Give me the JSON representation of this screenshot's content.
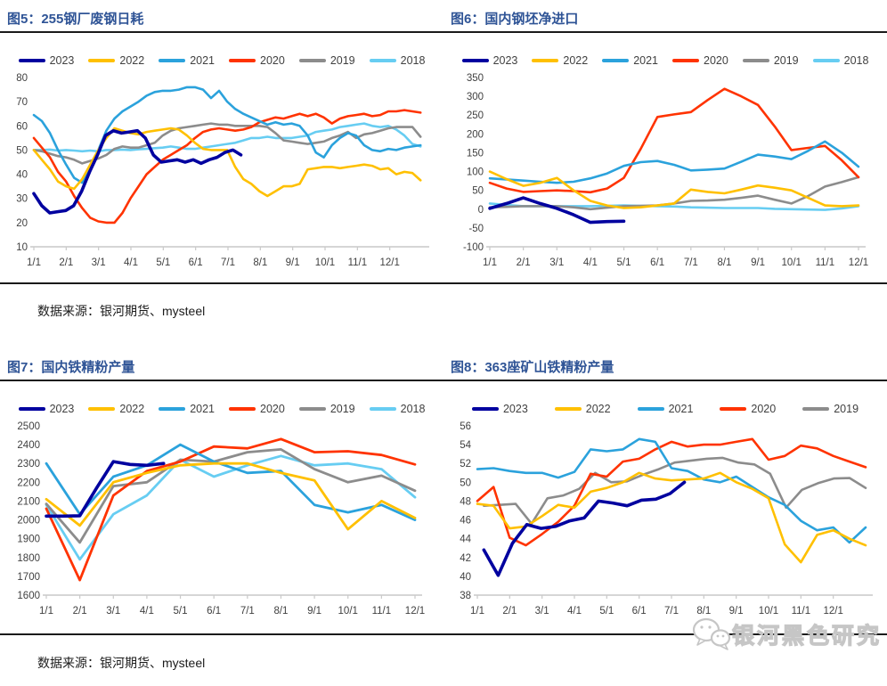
{
  "source_note": "数据来源：银河期货、mysteel",
  "watermark": {
    "label": "银河黑色研究",
    "logo": "wechat-bubbles-icon",
    "color": "#c6c6c6"
  },
  "accent_colors": {
    "title": "#2F5496",
    "tick_label": "#404040",
    "axis_line": "#c9c9c9",
    "rule_line": "#1a1a1a"
  },
  "chart_data": [
    {
      "type": "line",
      "title": "图5：255钢厂废钢日耗",
      "ylim": [
        10,
        80
      ],
      "yticks": [
        10,
        20,
        30,
        40,
        50,
        60,
        70,
        80
      ],
      "xticks": [
        "1/1",
        "2/1",
        "3/1",
        "4/1",
        "5/1",
        "6/1",
        "7/1",
        "8/1",
        "9/1",
        "10/1",
        "11/1",
        "12/1"
      ],
      "xmax": 13,
      "grid": false,
      "legend_position": "top",
      "series": [
        {
          "name": "2023",
          "color": "#00009F",
          "width": 3.6,
          "x_start": 1,
          "x_end": 7.4,
          "values": [
            32,
            27,
            24,
            24.5,
            25,
            27,
            33,
            41,
            48,
            56,
            58,
            57,
            57.5,
            58,
            55,
            48,
            45,
            45.5,
            46,
            45,
            46,
            44.5,
            46,
            47,
            49,
            50,
            48
          ]
        },
        {
          "name": "2022",
          "color": "#FFC000",
          "width": 2.6,
          "x_start": 1,
          "x_end": 12.95,
          "values": [
            50,
            46,
            42,
            37,
            35,
            34,
            38,
            44,
            50,
            55,
            59,
            58,
            57,
            56.5,
            57.5,
            58,
            58.5,
            59,
            58.5,
            56,
            53,
            50.5,
            50,
            50,
            50,
            43,
            38,
            36,
            33,
            31,
            33,
            35,
            35,
            36,
            42,
            42.5,
            43,
            43,
            42.5,
            43,
            43.5,
            44,
            43.5,
            42,
            42.5,
            40,
            41,
            40.5,
            37.5
          ]
        },
        {
          "name": "2021",
          "color": "#2BA2DC",
          "width": 2.6,
          "x_start": 1,
          "x_end": 12.95,
          "values": [
            64.5,
            62,
            57,
            50,
            44,
            38.5,
            36.5,
            42,
            50,
            58,
            63,
            66,
            68,
            70,
            72.5,
            74,
            74.5,
            74.5,
            75,
            76,
            76,
            75,
            71.5,
            74.5,
            70,
            67,
            65,
            63.5,
            62,
            60.5,
            61.5,
            60.5,
            61,
            60,
            56,
            49,
            47,
            52,
            55,
            57,
            56,
            52,
            50,
            49.5,
            50.5,
            50,
            51,
            51.5,
            52
          ]
        },
        {
          "name": "2020",
          "color": "#FF3300",
          "width": 2.6,
          "x_start": 1,
          "x_end": 12.95,
          "values": [
            55,
            51,
            47,
            41,
            37,
            31,
            26,
            22,
            20.5,
            20,
            20,
            24,
            30,
            35,
            40,
            43,
            46,
            48,
            50,
            52,
            55,
            57.5,
            58.5,
            59,
            58.5,
            58,
            58.5,
            59.5,
            61.5,
            62.5,
            63.5,
            63,
            64,
            65,
            64,
            65,
            63.5,
            61,
            63,
            64,
            64.5,
            65,
            64,
            64.5,
            66,
            66,
            66.5,
            66,
            65.5
          ]
        },
        {
          "name": "2019",
          "color": "#8C8C8C",
          "width": 2.6,
          "x_start": 1,
          "x_end": 12.95,
          "values": [
            50,
            49.5,
            48.5,
            47.5,
            47,
            46,
            44.5,
            45.5,
            46.5,
            48,
            50.5,
            51.5,
            51,
            51,
            52,
            53,
            56,
            58,
            59,
            59.5,
            60,
            60.5,
            61,
            60.5,
            60.5,
            60,
            60,
            60,
            60,
            59.5,
            57,
            54,
            53.5,
            53,
            52.5,
            53,
            53.5,
            55,
            56,
            57.5,
            55,
            56.5,
            57,
            58,
            59,
            59.5,
            59.5,
            59.5,
            55.5
          ]
        },
        {
          "name": "2018",
          "color": "#67CDF2",
          "width": 2.6,
          "x_start": 1,
          "x_end": 12.95,
          "values": [
            50,
            50,
            50.2,
            49.8,
            50,
            49.8,
            49.5,
            49.8,
            49.5,
            50,
            50,
            50.2,
            50,
            50.3,
            50.5,
            50.8,
            51,
            51.5,
            51,
            50.5,
            50.5,
            51,
            51.5,
            52,
            52.5,
            53,
            54,
            55,
            55,
            55.5,
            55,
            55,
            55,
            55.5,
            56,
            57.5,
            58,
            58.5,
            59.5,
            60,
            60.5,
            61,
            60,
            59.5,
            60,
            58.5,
            56,
            52.5,
            51.5
          ]
        }
      ]
    },
    {
      "type": "line",
      "title": "图6：国内钢坯净进口",
      "ylim": [
        -100,
        350
      ],
      "yticks": [
        -100,
        -50,
        0,
        50,
        100,
        150,
        200,
        250,
        300,
        350
      ],
      "xticks": [
        "1/1",
        "2/1",
        "3/1",
        "4/1",
        "5/1",
        "6/1",
        "7/1",
        "8/1",
        "9/1",
        "10/1",
        "11/1",
        "12/1"
      ],
      "xmax": 12,
      "grid": false,
      "legend_position": "top",
      "series": [
        {
          "name": "2023",
          "color": "#00009F",
          "width": 3.6,
          "x_start": 1,
          "x_end": 5,
          "values": [
            2,
            15,
            30,
            15,
            2,
            -15,
            -35,
            -33,
            -32
          ]
        },
        {
          "name": "2022",
          "color": "#FFC000",
          "width": 2.6,
          "x_start": 1,
          "x_end": 12,
          "values": [
            100,
            80,
            62,
            70,
            83,
            50,
            22,
            10,
            3,
            5,
            10,
            15,
            52,
            46,
            42,
            52,
            63,
            57,
            50,
            30,
            10,
            8,
            10
          ]
        },
        {
          "name": "2021",
          "color": "#2BA2DC",
          "width": 2.6,
          "x_start": 1,
          "x_end": 12,
          "values": [
            82,
            79,
            76,
            73,
            70,
            73,
            82,
            95,
            115,
            125,
            128,
            118,
            103,
            105,
            108,
            126,
            145,
            140,
            133,
            155,
            180,
            150,
            113
          ]
        },
        {
          "name": "2020",
          "color": "#FF3300",
          "width": 2.6,
          "x_start": 1,
          "x_end": 12,
          "values": [
            70,
            55,
            46,
            48,
            50,
            48,
            45,
            55,
            83,
            160,
            245,
            252,
            258,
            290,
            320,
            300,
            277,
            220,
            157,
            163,
            168,
            130,
            85
          ]
        },
        {
          "name": "2019",
          "color": "#8C8C8C",
          "width": 2.6,
          "x_start": 1,
          "x_end": 12,
          "values": [
            5,
            6,
            8,
            8,
            8,
            5,
            0,
            4,
            8,
            9,
            10,
            15,
            22,
            23,
            25,
            30,
            36,
            25,
            15,
            35,
            60,
            72,
            85
          ]
        },
        {
          "name": "2018",
          "color": "#67CDF2",
          "width": 2.6,
          "x_start": 1,
          "x_end": 12,
          "values": [
            15,
            11,
            8,
            8,
            8,
            8,
            8,
            9,
            10,
            9,
            8,
            7,
            5,
            4,
            3,
            3,
            3,
            1,
            0,
            -1,
            -2,
            2,
            8
          ]
        }
      ]
    },
    {
      "type": "line",
      "title": "图7：国内铁精粉产量",
      "ylim": [
        1600,
        2500
      ],
      "yticks": [
        1600,
        1700,
        1800,
        1900,
        2000,
        2100,
        2200,
        2300,
        2400,
        2500
      ],
      "xticks": [
        "1/1",
        "2/1",
        "3/1",
        "4/1",
        "5/1",
        "6/1",
        "7/1",
        "8/1",
        "9/1",
        "10/1",
        "11/1",
        "12/1"
      ],
      "xmax": 12,
      "grid": false,
      "legend_position": "top",
      "series": [
        {
          "name": "2023",
          "color": "#00009F",
          "width": 3.6,
          "x_start": 1,
          "x_end": 4.5,
          "values": [
            2020,
            2020,
            2022,
            2170,
            2310,
            2295,
            2290,
            2300
          ]
        },
        {
          "name": "2022",
          "color": "#FFC000",
          "width": 2.8,
          "x_start": 1,
          "x_end": 12,
          "values": [
            2110,
            1970,
            2200,
            2250,
            2290,
            2300,
            2300,
            2250,
            2210,
            1950,
            2100,
            2010
          ]
        },
        {
          "name": "2021",
          "color": "#2BA2DC",
          "width": 2.8,
          "x_start": 1,
          "x_end": 12,
          "values": [
            2300,
            2030,
            2230,
            2290,
            2400,
            2310,
            2250,
            2260,
            2080,
            2040,
            2080,
            2000
          ]
        },
        {
          "name": "2020",
          "color": "#FF3300",
          "width": 2.8,
          "x_start": 1,
          "x_end": 12,
          "values": [
            2060,
            1680,
            2130,
            2260,
            2310,
            2390,
            2380,
            2430,
            2360,
            2365,
            2345,
            2295
          ]
        },
        {
          "name": "2019",
          "color": "#8C8C8C",
          "width": 2.8,
          "x_start": 1,
          "x_end": 12,
          "values": [
            2085,
            1880,
            2180,
            2200,
            2320,
            2310,
            2360,
            2375,
            2270,
            2200,
            2235,
            2155
          ]
        },
        {
          "name": "2018",
          "color": "#67CDF2",
          "width": 2.8,
          "x_start": 1,
          "x_end": 12,
          "values": [
            2080,
            1790,
            2030,
            2130,
            2320,
            2230,
            2290,
            2340,
            2290,
            2300,
            2270,
            2120
          ]
        }
      ]
    },
    {
      "type": "line",
      "title": "图8：363座矿山铁精粉产量",
      "ylim": [
        38,
        56
      ],
      "yticks": [
        38,
        40,
        42,
        44,
        46,
        48,
        50,
        52,
        54,
        56
      ],
      "xticks": [
        "1/1",
        "2/1",
        "3/1",
        "4/1",
        "5/1",
        "6/1",
        "7/1",
        "8/1",
        "9/1",
        "10/1",
        "11/1",
        "12/1"
      ],
      "xmax": 13,
      "grid": false,
      "legend_position": "top",
      "series": [
        {
          "name": "2023",
          "color": "#00009F",
          "width": 3.6,
          "x_start": 1.2,
          "x_end": 7.4,
          "values": [
            42.8,
            40.1,
            43.5,
            45.5,
            45.1,
            45.3,
            45.9,
            46.2,
            48,
            47.8,
            47.5,
            48.1,
            48.2,
            48.8,
            50
          ]
        },
        {
          "name": "2022",
          "color": "#FFC000",
          "width": 2.6,
          "x_start": 1,
          "x_end": 13,
          "values": [
            47.7,
            47.5,
            45.1,
            45.3,
            46.4,
            47.6,
            47.3,
            49,
            49.4,
            50,
            51,
            50.4,
            50.2,
            50.3,
            50.4,
            51,
            50,
            49.3,
            48.3,
            43.4,
            41.5,
            44.4,
            44.9,
            44,
            43.3
          ]
        },
        {
          "name": "2021",
          "color": "#2BA2DC",
          "width": 2.6,
          "x_start": 1,
          "x_end": 13,
          "values": [
            51.4,
            51.5,
            51.2,
            51,
            51,
            50.5,
            51.1,
            53.5,
            53.3,
            53.5,
            54.6,
            54.3,
            51.5,
            51.2,
            50.3,
            50,
            50.6,
            49.5,
            48.4,
            47.6,
            45.9,
            44.9,
            45.2,
            43.6,
            45.2
          ]
        },
        {
          "name": "2020",
          "color": "#FF3300",
          "width": 2.6,
          "x_start": 1,
          "x_end": 13,
          "values": [
            48,
            49.5,
            44.1,
            43.3,
            44.5,
            45.8,
            47.5,
            50.9,
            50.6,
            52.2,
            52.5,
            53.5,
            54.3,
            53.8,
            54,
            54,
            54.3,
            54.6,
            52.4,
            52.8,
            53.9,
            53.6,
            52.8,
            52.2,
            51.6
          ]
        },
        {
          "name": "2019",
          "color": "#8C8C8C",
          "width": 2.6,
          "x_start": 1.2,
          "x_end": 13,
          "values": [
            47.5,
            47.6,
            47.7,
            45.6,
            48.3,
            48.6,
            49.3,
            51,
            50,
            50.1,
            50.8,
            51.4,
            52.1,
            52.3,
            52.5,
            52.6,
            52.1,
            51.9,
            50.9,
            47.3,
            49.2,
            49.9,
            50.4,
            50.45,
            49.4
          ]
        }
      ]
    }
  ]
}
